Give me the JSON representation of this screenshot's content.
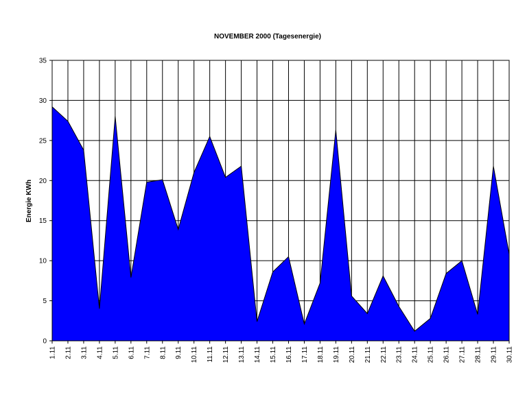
{
  "chart_data": {
    "type": "area",
    "title": "NOVEMBER 2000 (Tagesenergie)",
    "xlabel": "",
    "ylabel": "Energie KWh",
    "categories": [
      "1.11",
      "2.11",
      "3.11",
      "4.11",
      "5.11",
      "6.11",
      "7.11",
      "8.11",
      "9.11",
      "10.11",
      "11.11",
      "12.11",
      "13.11",
      "14.11",
      "15.11",
      "16.11",
      "17.11",
      "18.11",
      "19.11",
      "20.11",
      "21.11",
      "22.11",
      "23.11",
      "24.11",
      "25.11",
      "26.11",
      "27.11",
      "28.11",
      "29.11",
      "30.11"
    ],
    "values": [
      29.2,
      27.4,
      23.8,
      4.0,
      28.0,
      7.9,
      19.8,
      20.1,
      13.9,
      21.0,
      25.5,
      20.4,
      21.8,
      2.4,
      8.6,
      10.5,
      2.1,
      7.2,
      26.3,
      5.6,
      3.4,
      8.1,
      4.3,
      1.2,
      2.8,
      8.4,
      10.0,
      3.3,
      21.8,
      10.8
    ],
    "ylim": [
      0,
      35
    ],
    "yticks": [
      0,
      5,
      10,
      15,
      20,
      25,
      30,
      35
    ],
    "grid": true,
    "fill_color": "#0000FF",
    "line_color": "#000000"
  }
}
